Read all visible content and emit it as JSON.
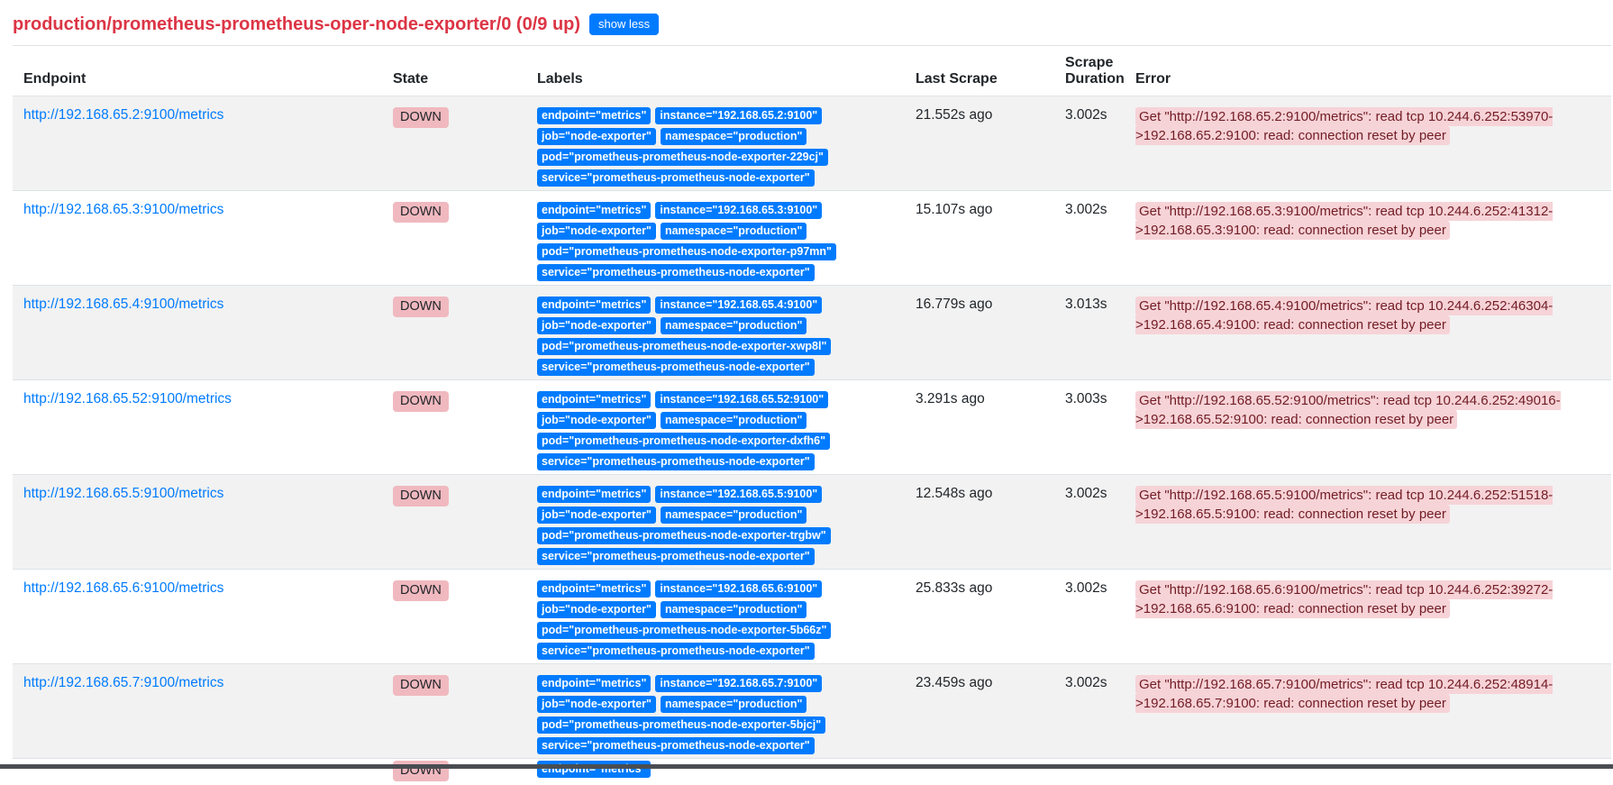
{
  "page": {
    "title": "production/prometheus-prometheus-oper-node-exporter/0 (0/9 up)",
    "show_less_label": "show less"
  },
  "table": {
    "columns": [
      "Endpoint",
      "State",
      "Labels",
      "Last Scrape",
      "Scrape Duration",
      "Error"
    ],
    "rows": [
      {
        "endpoint": "http://192.168.65.2:9100/metrics",
        "state": "DOWN",
        "labels": [
          "endpoint=\"metrics\"",
          "instance=\"192.168.65.2:9100\"",
          "job=\"node-exporter\"",
          "namespace=\"production\"",
          "pod=\"prometheus-prometheus-node-exporter-229cj\"",
          "service=\"prometheus-prometheus-node-exporter\""
        ],
        "last_scrape": "21.552s ago",
        "scrape_duration": "3.002s",
        "error": "Get \"http://192.168.65.2:9100/metrics\": read tcp 10.244.6.252:53970->192.168.65.2:9100: read: connection reset by peer"
      },
      {
        "endpoint": "http://192.168.65.3:9100/metrics",
        "state": "DOWN",
        "labels": [
          "endpoint=\"metrics\"",
          "instance=\"192.168.65.3:9100\"",
          "job=\"node-exporter\"",
          "namespace=\"production\"",
          "pod=\"prometheus-prometheus-node-exporter-p97mn\"",
          "service=\"prometheus-prometheus-node-exporter\""
        ],
        "last_scrape": "15.107s ago",
        "scrape_duration": "3.002s",
        "error": "Get \"http://192.168.65.3:9100/metrics\": read tcp 10.244.6.252:41312->192.168.65.3:9100: read: connection reset by peer"
      },
      {
        "endpoint": "http://192.168.65.4:9100/metrics",
        "state": "DOWN",
        "labels": [
          "endpoint=\"metrics\"",
          "instance=\"192.168.65.4:9100\"",
          "job=\"node-exporter\"",
          "namespace=\"production\"",
          "pod=\"prometheus-prometheus-node-exporter-xwp8l\"",
          "service=\"prometheus-prometheus-node-exporter\""
        ],
        "last_scrape": "16.779s ago",
        "scrape_duration": "3.013s",
        "error": "Get \"http://192.168.65.4:9100/metrics\": read tcp 10.244.6.252:46304->192.168.65.4:9100: read: connection reset by peer"
      },
      {
        "endpoint": "http://192.168.65.52:9100/metrics",
        "state": "DOWN",
        "labels": [
          "endpoint=\"metrics\"",
          "instance=\"192.168.65.52:9100\"",
          "job=\"node-exporter\"",
          "namespace=\"production\"",
          "pod=\"prometheus-prometheus-node-exporter-dxfh6\"",
          "service=\"prometheus-prometheus-node-exporter\""
        ],
        "last_scrape": "3.291s ago",
        "scrape_duration": "3.003s",
        "error": "Get \"http://192.168.65.52:9100/metrics\": read tcp 10.244.6.252:49016->192.168.65.52:9100: read: connection reset by peer"
      },
      {
        "endpoint": "http://192.168.65.5:9100/metrics",
        "state": "DOWN",
        "labels": [
          "endpoint=\"metrics\"",
          "instance=\"192.168.65.5:9100\"",
          "job=\"node-exporter\"",
          "namespace=\"production\"",
          "pod=\"prometheus-prometheus-node-exporter-trgbw\"",
          "service=\"prometheus-prometheus-node-exporter\""
        ],
        "last_scrape": "12.548s ago",
        "scrape_duration": "3.002s",
        "error": "Get \"http://192.168.65.5:9100/metrics\": read tcp 10.244.6.252:51518->192.168.65.5:9100: read: connection reset by peer"
      },
      {
        "endpoint": "http://192.168.65.6:9100/metrics",
        "state": "DOWN",
        "labels": [
          "endpoint=\"metrics\"",
          "instance=\"192.168.65.6:9100\"",
          "job=\"node-exporter\"",
          "namespace=\"production\"",
          "pod=\"prometheus-prometheus-node-exporter-5b66z\"",
          "service=\"prometheus-prometheus-node-exporter\""
        ],
        "last_scrape": "25.833s ago",
        "scrape_duration": "3.002s",
        "error": "Get \"http://192.168.65.6:9100/metrics\": read tcp 10.244.6.252:39272->192.168.65.6:9100: read: connection reset by peer"
      },
      {
        "endpoint": "http://192.168.65.7:9100/metrics",
        "state": "DOWN",
        "labels": [
          "endpoint=\"metrics\"",
          "instance=\"192.168.65.7:9100\"",
          "job=\"node-exporter\"",
          "namespace=\"production\"",
          "pod=\"prometheus-prometheus-node-exporter-5bjcj\"",
          "service=\"prometheus-prometheus-node-exporter\""
        ],
        "last_scrape": "23.459s ago",
        "scrape_duration": "3.002s",
        "error": "Get \"http://192.168.65.7:9100/metrics\": read tcp 10.244.6.252:48914->192.168.65.7:9100: read: connection reset by peer"
      },
      {
        "partial": true,
        "endpoint": "",
        "state": "DOWN",
        "labels": [
          "endpoint=\"metrics\""
        ],
        "last_scrape": "",
        "scrape_duration": "",
        "error": ""
      }
    ]
  },
  "colors": {
    "title_red": "#dc3545",
    "link_blue": "#007bff",
    "label_badge_blue": "#007bff",
    "state_down_bg": "#f0b9bf",
    "state_down_text": "#212529",
    "error_bg": "#f6d3d7",
    "error_text": "#721c24",
    "row_stripe": "#f2f2f2",
    "border": "#dee2e6",
    "bottom_strip": "#4a4d52"
  }
}
